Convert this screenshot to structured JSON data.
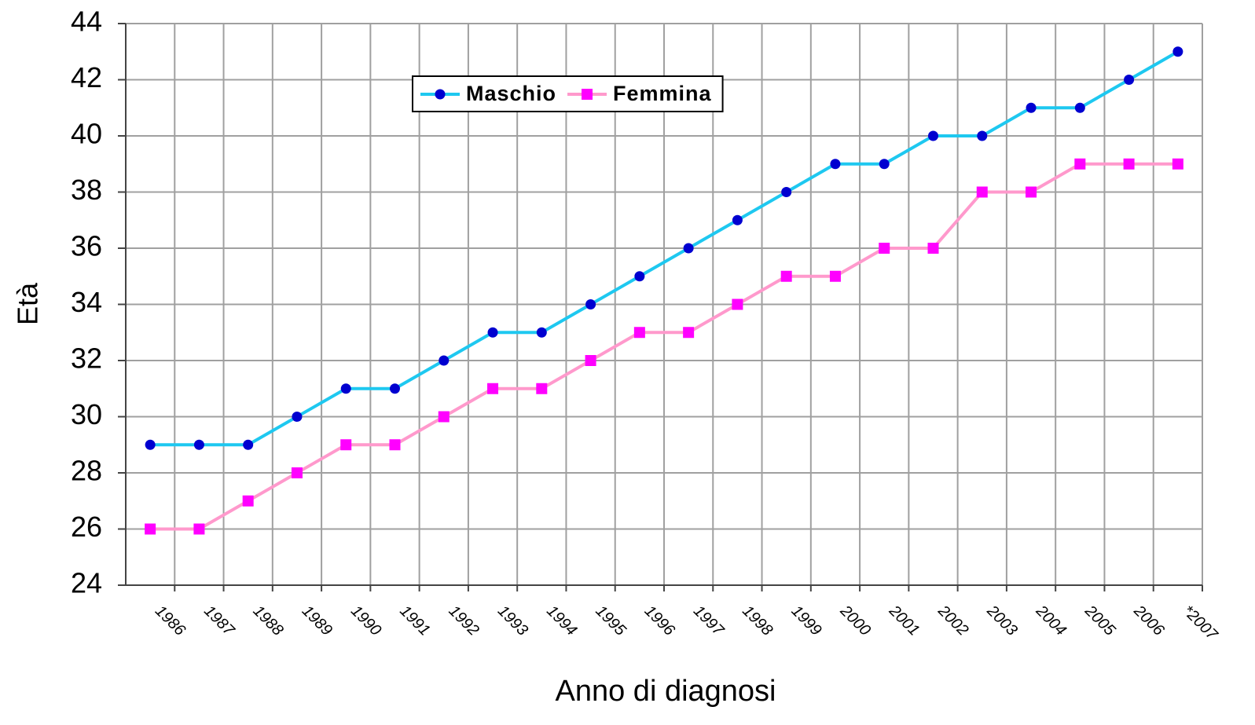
{
  "chart_data": {
    "type": "line",
    "y_label": "Età",
    "x_label": "Anno di diagnosi",
    "categories": [
      "1986",
      "1987",
      "1988",
      "1989",
      "1990",
      "1991",
      "1992",
      "1993",
      "1994",
      "1995",
      "1996",
      "1997",
      "1998",
      "1999",
      "2000",
      "2001",
      "2002",
      "2003",
      "2004",
      "2005",
      "2006",
      "*2007"
    ],
    "series": [
      {
        "name": "Maschio",
        "color": "#1ec8f0",
        "marker": "circle",
        "marker_color": "#0000d0",
        "values": [
          29,
          29,
          29,
          30,
          31,
          31,
          32,
          33,
          33,
          34,
          35,
          36,
          37,
          38,
          39,
          39,
          40,
          40,
          41,
          41,
          42,
          43
        ]
      },
      {
        "name": "Femmina",
        "color": "#ff99cc",
        "marker": "square",
        "marker_color": "#ff00ff",
        "values": [
          26,
          26,
          27,
          28,
          29,
          29,
          30,
          31,
          31,
          32,
          33,
          33,
          34,
          35,
          35,
          36,
          36,
          38,
          38,
          39,
          39,
          39
        ]
      }
    ],
    "ylim": [
      24,
      44
    ],
    "yticks": [
      24,
      26,
      28,
      30,
      32,
      34,
      36,
      38,
      40,
      42,
      44
    ],
    "grid": true
  }
}
